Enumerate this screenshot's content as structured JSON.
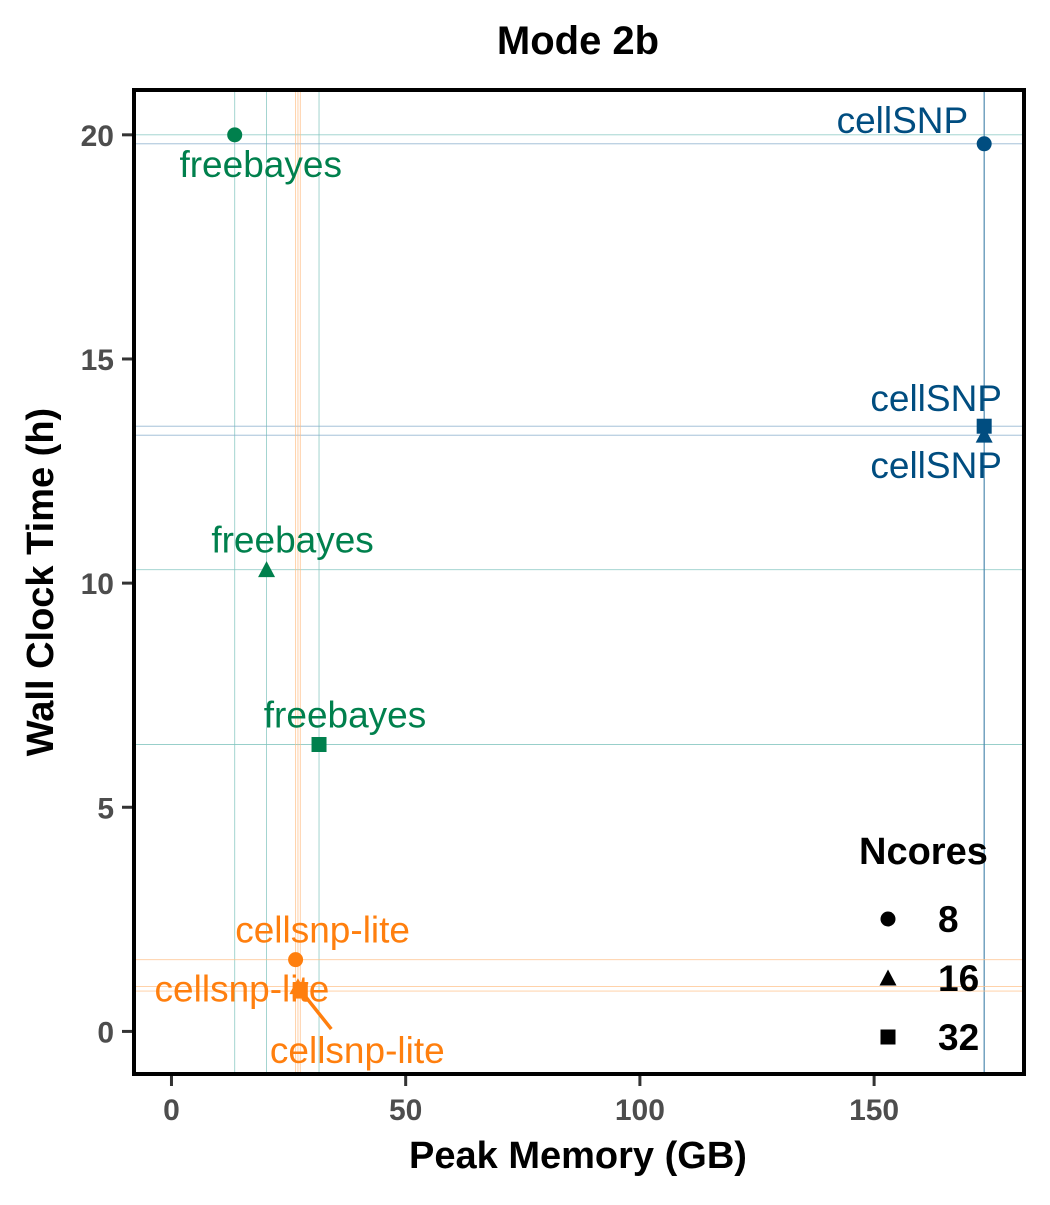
{
  "chart_data": {
    "type": "scatter",
    "title": "Mode 2b",
    "xlabel": "Peak Memory (GB)",
    "ylabel": "Wall Clock Time (h)",
    "xlim": [
      -8,
      182
    ],
    "ylim": [
      -0.95,
      21
    ],
    "x_ticks": [
      "0",
      "50",
      "100",
      "150"
    ],
    "x_tick_values": [
      0,
      50,
      100,
      150
    ],
    "y_ticks": [
      "0",
      "5",
      "10",
      "15",
      "20"
    ],
    "y_tick_values": [
      0,
      5,
      10,
      15,
      20
    ],
    "grid": false,
    "reference_lines": "vertical and horizontal line through each point",
    "legend": {
      "title": "Ncores",
      "placement": "bottom-right",
      "entries": [
        {
          "label": "8",
          "shape": "circle"
        },
        {
          "label": "16",
          "shape": "triangle"
        },
        {
          "label": "32",
          "shape": "square"
        }
      ]
    },
    "colors": {
      "freebayes": "#00804d",
      "cellSNP": "#004d80",
      "cellsnp-lite": "#ff7f0e"
    },
    "series": [
      {
        "name": "freebayes",
        "points": [
          {
            "x": 13.5,
            "y": 20.0,
            "ncores": "8",
            "label": "freebayes"
          },
          {
            "x": 20.3,
            "y": 10.3,
            "ncores": "16",
            "label": "freebayes"
          },
          {
            "x": 31.5,
            "y": 6.4,
            "ncores": "32",
            "label": "freebayes"
          }
        ]
      },
      {
        "name": "cellSNP",
        "points": [
          {
            "x": 173.5,
            "y": 19.8,
            "ncores": "8",
            "label": "cellSNP"
          },
          {
            "x": 173.5,
            "y": 13.3,
            "ncores": "16",
            "label": "cellSNP"
          },
          {
            "x": 173.5,
            "y": 13.5,
            "ncores": "32",
            "label": "cellSNP"
          }
        ]
      },
      {
        "name": "cellsnp-lite",
        "points": [
          {
            "x": 26.5,
            "y": 1.6,
            "ncores": "8",
            "label": "cellsnp-lite"
          },
          {
            "x": 27.0,
            "y": 1.0,
            "ncores": "16",
            "label": "cellsnp-lite"
          },
          {
            "x": 27.5,
            "y": 0.9,
            "ncores": "32",
            "label": "cellsnp-lite"
          }
        ]
      }
    ]
  }
}
